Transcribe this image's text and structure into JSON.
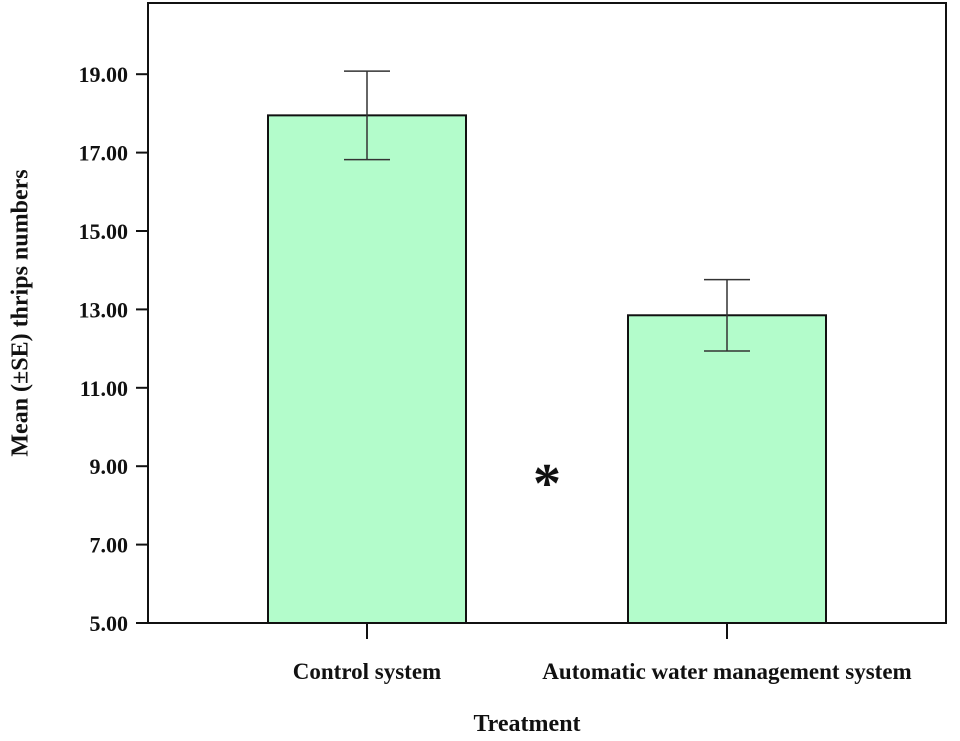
{
  "chart_data": {
    "type": "bar",
    "title": "",
    "xlabel": "Treatment",
    "ylabel": "Mean (±SE) thrips numbers",
    "categories": [
      "Control system",
      "Automatic water management system"
    ],
    "values": [
      17.95,
      12.85
    ],
    "error": [
      1.13,
      0.91
    ],
    "ylim": [
      5,
      20
    ],
    "yticks": [
      5,
      7,
      9,
      11,
      13,
      15,
      17,
      19
    ],
    "ytick_labels": [
      "5.00",
      "7.00",
      "9.00",
      "11.00",
      "13.00",
      "15.00",
      "17.00",
      "19.00"
    ],
    "annotation": "*",
    "bar_color": "#b3fccb",
    "bar_edge_color": "#111111",
    "grid": false,
    "legend": "none"
  }
}
